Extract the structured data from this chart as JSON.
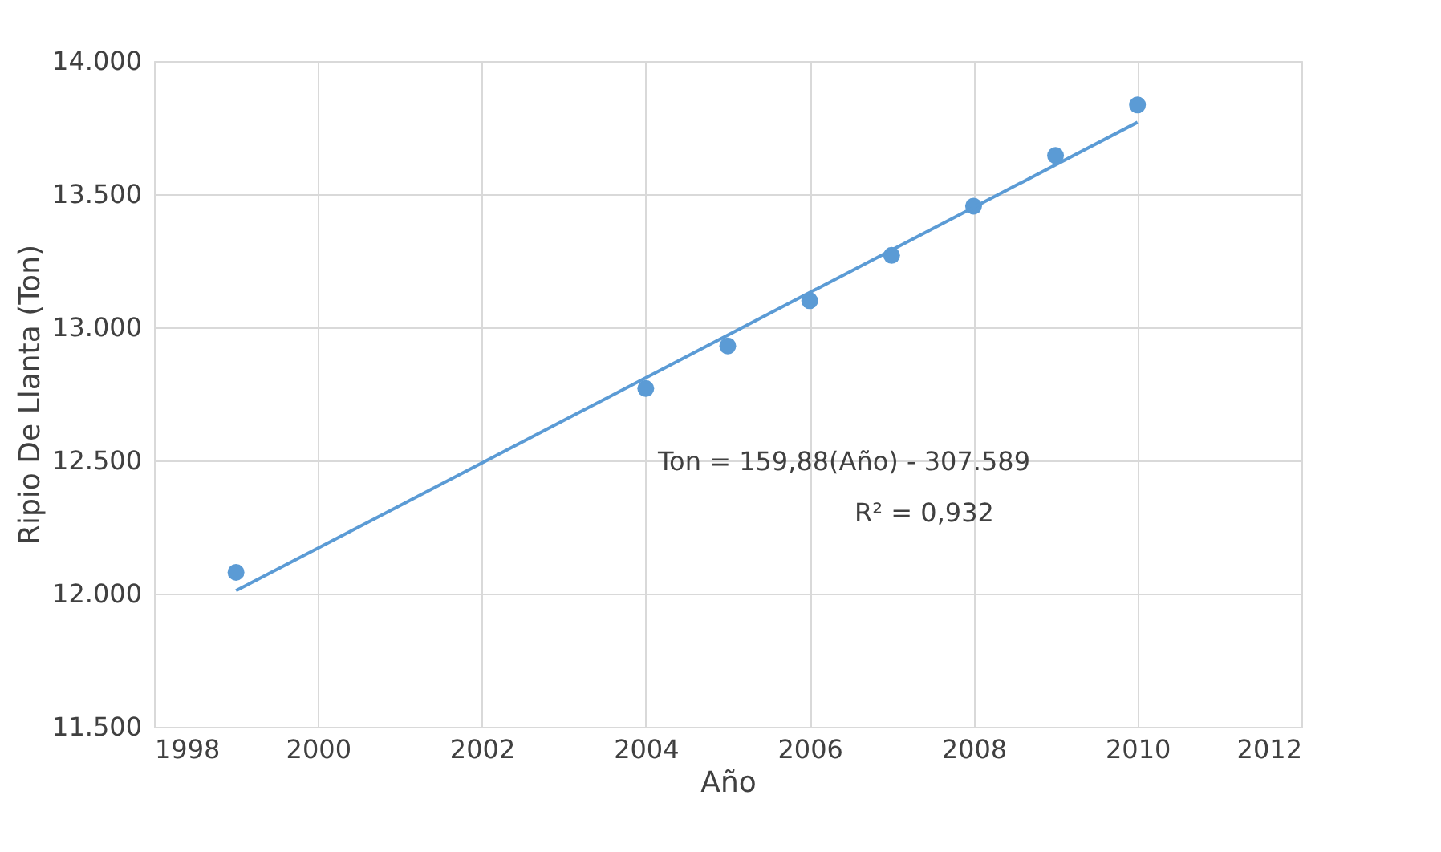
{
  "chart_data": {
    "type": "scatter",
    "xlabel": "Año",
    "ylabel": "Ripio De Llanta (Ton)",
    "xlim": [
      1998,
      2012
    ],
    "xticks": [
      1998,
      2000,
      2002,
      2004,
      2006,
      2008,
      2010,
      2012
    ],
    "ylim": [
      11500,
      14000
    ],
    "yticks": [
      {
        "value": 11500,
        "label": "11.500"
      },
      {
        "value": 12000,
        "label": "12.000"
      },
      {
        "value": 12500,
        "label": "12.500"
      },
      {
        "value": 13000,
        "label": "13.000"
      },
      {
        "value": 13500,
        "label": "13.500"
      },
      {
        "value": 14000,
        "label": "14.000"
      }
    ],
    "grid": true,
    "marker": "circle",
    "series": [
      {
        "color": "#5b9bd5",
        "x": [
          1999,
          2004,
          2005,
          2006,
          2007,
          2008,
          2009,
          2010
        ],
        "values": [
          12080,
          12770,
          12930,
          13100,
          13270,
          13455,
          13645,
          13835
        ]
      },
      {
        "type": "line",
        "color": "#5b9bd5",
        "line_style": "solid",
        "marker": "none",
        "x": [
          1999,
          2010
        ],
        "values": [
          12011,
          13770
        ]
      }
    ],
    "annotations": [
      "Ton = 159,88(Año) - 307.589",
      "R² = 0,932"
    ]
  }
}
